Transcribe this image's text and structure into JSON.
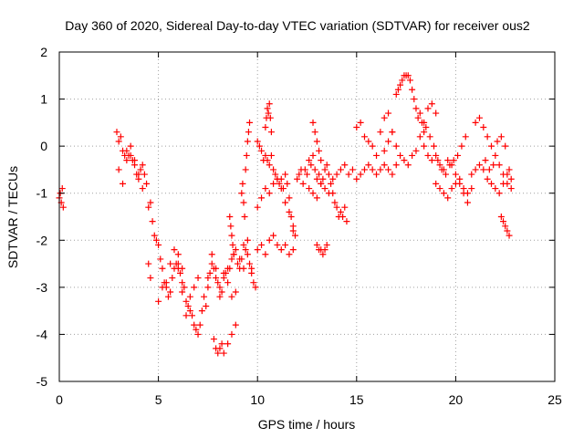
{
  "chart_data": {
    "type": "scatter",
    "marker": "plus",
    "color": "#ff0000",
    "title": "Day 360 of 2020, Sidereal Day-to-day VTEC variation (SDTVAR) for receiver ous2",
    "xlabel": "GPS time / hours",
    "ylabel": "SDTVAR / TECUs",
    "xlim": [
      0,
      25
    ],
    "ylim": [
      -5,
      2
    ],
    "xticks": [
      0,
      5,
      10,
      15,
      20,
      25
    ],
    "yticks": [
      -5,
      -4,
      -3,
      -2,
      -1,
      0,
      1,
      2
    ],
    "grid": true,
    "series": [
      {
        "name": "SDTVAR",
        "x": [
          0.0,
          0.05,
          0.1,
          0.15,
          0.2,
          2.9,
          3.0,
          3.1,
          3.2,
          3.3,
          3.4,
          3.5,
          3.6,
          3.7,
          3.8,
          3.9,
          4.0,
          4.1,
          4.2,
          4.3,
          4.4,
          3.0,
          3.2,
          3.4,
          3.6,
          3.8,
          4.0,
          4.2,
          4.5,
          4.6,
          4.7,
          4.8,
          4.9,
          5.0,
          5.1,
          5.2,
          5.3,
          5.4,
          5.5,
          5.6,
          5.7,
          5.8,
          5.9,
          6.0,
          6.1,
          6.2,
          6.3,
          6.4,
          6.5,
          6.6,
          6.7,
          6.8,
          6.9,
          7.0,
          7.1,
          7.2,
          5.0,
          5.2,
          5.4,
          5.6,
          5.8,
          6.0,
          6.2,
          6.4,
          6.6,
          6.8,
          7.0,
          4.5,
          4.6,
          6.0,
          6.2,
          7.3,
          7.4,
          7.5,
          7.6,
          7.7,
          7.8,
          7.9,
          8.0,
          8.1,
          8.2,
          8.3,
          8.4,
          8.5,
          8.6,
          8.7,
          8.8,
          8.9,
          9.0,
          9.1,
          9.2,
          9.3,
          9.4,
          9.5,
          9.6,
          9.7,
          9.8,
          9.9,
          7.5,
          7.7,
          7.9,
          8.1,
          8.3,
          8.5,
          8.7,
          8.9,
          9.1,
          9.3,
          9.5,
          9.7,
          7.8,
          7.9,
          8.0,
          8.1,
          8.2,
          8.3,
          8.5,
          8.7,
          8.9,
          8.6,
          8.65,
          8.7,
          8.75,
          8.8,
          9.2,
          9.25,
          9.3,
          9.35,
          9.4,
          9.45,
          9.5,
          9.55,
          9.6,
          10.0,
          10.1,
          10.2,
          10.3,
          10.4,
          10.5,
          10.6,
          10.7,
          10.8,
          10.9,
          11.0,
          11.1,
          11.2,
          11.3,
          11.4,
          11.5,
          11.6,
          11.7,
          11.8,
          11.9,
          12.0,
          12.1,
          12.2,
          12.3,
          10.0,
          10.2,
          10.4,
          10.6,
          10.8,
          11.0,
          11.2,
          11.4,
          11.6,
          11.8,
          10.0,
          10.2,
          10.4,
          10.6,
          10.8,
          11.0,
          11.2,
          11.4,
          11.6,
          11.8,
          10.4,
          10.45,
          10.5,
          10.55,
          10.6,
          10.65,
          10.7,
          12.4,
          12.5,
          12.6,
          12.7,
          12.8,
          12.9,
          13.0,
          13.1,
          13.2,
          13.3,
          13.4,
          13.5,
          13.6,
          13.7,
          13.8,
          13.9,
          14.0,
          14.1,
          14.2,
          14.3,
          14.4,
          14.5,
          12.6,
          12.8,
          13.0,
          13.2,
          13.4,
          13.6,
          13.8,
          14.0,
          14.2,
          14.4,
          13.0,
          13.1,
          13.2,
          13.3,
          13.4,
          13.5,
          12.8,
          12.9,
          13.0,
          13.1,
          13.2,
          14.6,
          14.8,
          15.0,
          15.2,
          15.4,
          15.6,
          15.8,
          16.0,
          16.2,
          16.4,
          16.6,
          16.8,
          17.0,
          15.0,
          15.2,
          15.4,
          15.6,
          15.8,
          16.0,
          16.2,
          16.4,
          16.6,
          16.8,
          16.4,
          16.6,
          16.8,
          17.0,
          17.0,
          17.1,
          17.2,
          17.3,
          17.4,
          17.5,
          17.6,
          17.7,
          17.8,
          17.9,
          18.0,
          18.1,
          18.2,
          18.3,
          18.4,
          17.2,
          17.4,
          17.6,
          17.8,
          18.0,
          18.2,
          18.4,
          18.6,
          18.8,
          19.0,
          18.4,
          18.6,
          18.8,
          19.0,
          19.2,
          19.4,
          19.6,
          19.8,
          20.0,
          20.2,
          20.4,
          20.6,
          20.8,
          18.5,
          18.7,
          18.9,
          19.1,
          19.3,
          19.5,
          19.7,
          19.9,
          20.1,
          20.3,
          20.5,
          19.0,
          19.2,
          19.4,
          19.6,
          19.8,
          20.0,
          20.2,
          20.4,
          20.6,
          20.8,
          21.0,
          21.2,
          21.4,
          21.6,
          21.8,
          22.0,
          22.2,
          22.4,
          22.6,
          22.8,
          21.0,
          21.2,
          21.4,
          21.6,
          21.8,
          22.0,
          22.2,
          22.4,
          22.6,
          22.3,
          22.4,
          22.5,
          22.6,
          22.7,
          21.5,
          21.7,
          21.9,
          22.1,
          22.3,
          22.5,
          22.7,
          22.8
        ],
        "y": [
          -1.1,
          -1.0,
          -1.2,
          -0.9,
          -1.3,
          0.3,
          0.1,
          0.2,
          -0.1,
          -0.2,
          -0.3,
          -0.2,
          -0.2,
          -0.3,
          -0.4,
          -0.6,
          -0.7,
          -0.5,
          -0.4,
          -0.6,
          -0.8,
          -0.5,
          -0.8,
          -0.1,
          0.0,
          -0.3,
          -0.6,
          -0.9,
          -1.3,
          -1.2,
          -1.6,
          -1.9,
          -2.0,
          -2.1,
          -2.4,
          -2.6,
          -2.9,
          -3.0,
          -3.2,
          -3.1,
          -2.8,
          -2.6,
          -2.5,
          -2.5,
          -2.7,
          -2.9,
          -3.0,
          -3.3,
          -3.4,
          -3.5,
          -3.6,
          -3.8,
          -3.9,
          -4.0,
          -3.8,
          -3.5,
          -3.3,
          -3.0,
          -2.9,
          -2.5,
          -2.2,
          -2.3,
          -2.6,
          -3.6,
          -3.2,
          -3.0,
          -2.8,
          -2.5,
          -2.8,
          -2.6,
          -3.1,
          -3.2,
          -3.4,
          -3.0,
          -2.7,
          -2.5,
          -2.6,
          -2.8,
          -2.9,
          -3.2,
          -3.1,
          -2.8,
          -2.7,
          -2.6,
          -2.6,
          -2.4,
          -2.3,
          -2.2,
          -2.5,
          -2.6,
          -2.4,
          -2.1,
          -2.2,
          -2.0,
          -2.5,
          -2.7,
          -2.9,
          -3.0,
          -2.8,
          -2.3,
          -2.6,
          -3.0,
          -2.7,
          -2.9,
          -3.2,
          -3.1,
          -2.4,
          -2.6,
          -2.3,
          -2.6,
          -4.1,
          -4.3,
          -4.4,
          -4.3,
          -4.2,
          -4.4,
          -4.2,
          -4.0,
          -3.8,
          -1.5,
          -1.7,
          -1.9,
          -2.1,
          -2.3,
          -1.0,
          -0.8,
          -1.2,
          -1.5,
          -0.5,
          -0.2,
          0.1,
          0.3,
          0.5,
          0.1,
          0.0,
          -0.1,
          -0.3,
          -0.2,
          -0.3,
          -0.4,
          -0.2,
          -0.5,
          -0.6,
          -0.7,
          -0.8,
          -0.7,
          -0.9,
          -0.6,
          -0.8,
          -1.1,
          -1.5,
          -1.7,
          -1.9,
          -0.7,
          -0.6,
          -0.5,
          -0.8,
          -1.3,
          -1.1,
          -0.9,
          -1.0,
          -0.8,
          -0.7,
          -0.9,
          -1.2,
          -1.4,
          -1.8,
          -2.2,
          -2.1,
          -2.3,
          -2.0,
          -1.9,
          -2.1,
          -2.2,
          -2.1,
          -2.3,
          -2.2,
          0.4,
          0.6,
          0.8,
          0.7,
          0.9,
          0.6,
          0.3,
          -0.5,
          -0.6,
          -0.3,
          -0.4,
          -0.2,
          -0.5,
          -0.7,
          -0.6,
          -0.8,
          -0.7,
          -0.5,
          -0.4,
          -0.6,
          -0.8,
          -1.0,
          -1.2,
          -1.3,
          -1.5,
          -1.4,
          -1.5,
          -1.3,
          -1.6,
          -0.9,
          -1.0,
          -1.1,
          -0.8,
          -0.9,
          -1.0,
          -0.7,
          -0.6,
          -0.5,
          -0.4,
          -2.1,
          -2.2,
          -2.2,
          -2.3,
          -2.2,
          -2.1,
          0.5,
          0.3,
          0.1,
          -0.1,
          -0.3,
          -0.6,
          -0.5,
          -0.7,
          -0.6,
          -0.5,
          -0.4,
          -0.5,
          -0.6,
          -0.5,
          -0.4,
          -0.5,
          -0.6,
          -0.4,
          0.4,
          0.5,
          0.2,
          0.1,
          0.0,
          -0.2,
          0.3,
          0.6,
          0.7,
          0.3,
          -0.1,
          0.1,
          0.3,
          0.0,
          1.1,
          1.2,
          1.3,
          1.4,
          1.5,
          1.5,
          1.5,
          1.4,
          1.2,
          1.0,
          0.8,
          0.6,
          0.7,
          0.5,
          0.3,
          -0.2,
          -0.3,
          -0.4,
          -0.2,
          -0.1,
          0.2,
          0.5,
          0.8,
          0.9,
          0.7,
          0.0,
          -0.2,
          -0.3,
          -0.2,
          -0.4,
          -0.5,
          -0.3,
          -0.4,
          -0.6,
          -0.8,
          -1.0,
          -1.2,
          -0.9,
          0.4,
          0.2,
          0.0,
          -0.3,
          -0.5,
          -0.6,
          -0.4,
          -0.3,
          -0.2,
          0.0,
          0.2,
          -0.8,
          -0.9,
          -1.0,
          -1.1,
          -0.9,
          -0.8,
          -0.7,
          -0.9,
          -1.0,
          -0.6,
          -0.5,
          -0.4,
          -0.5,
          -0.7,
          -0.8,
          -0.9,
          -1.0,
          -0.8,
          -0.6,
          -0.7,
          0.5,
          0.6,
          0.4,
          0.2,
          0.0,
          -0.2,
          -0.4,
          -0.6,
          -0.8,
          -1.5,
          -1.6,
          -1.7,
          -1.8,
          -1.9,
          -0.3,
          -0.5,
          -0.4,
          0.1,
          0.2,
          0.0,
          -0.5,
          -0.9
        ]
      }
    ]
  }
}
